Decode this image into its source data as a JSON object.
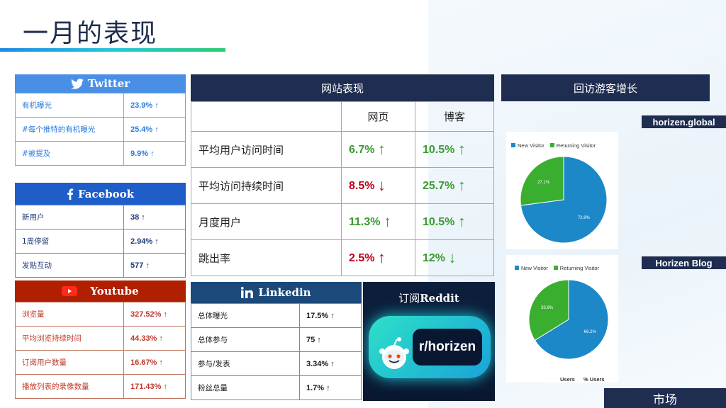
{
  "page": {
    "title": "一月的表现",
    "footer": "市场"
  },
  "twitter": {
    "title": "Twitter",
    "rows": [
      {
        "label": "有机曝光",
        "value": "23.9% ↑"
      },
      {
        "label": "#每个推特的有机曝光",
        "value": "25.4% ↑"
      },
      {
        "label": "#被提及",
        "value": "9.9% ↑"
      }
    ]
  },
  "facebook": {
    "title": "Facebook",
    "rows": [
      {
        "label": "新用户",
        "value": "38 ↑"
      },
      {
        "label": "1周停留",
        "value": "2.94% ↑"
      },
      {
        "label": "发贴互动",
        "value": "577 ↑"
      }
    ]
  },
  "youtube": {
    "title": "Youtube",
    "rows": [
      {
        "label": "浏览量",
        "value": "327.52% ↑"
      },
      {
        "label": "平均浏览持续时间",
        "value": "44.33% ↑"
      },
      {
        "label": "订阅用户数量",
        "value": "16.67% ↑"
      },
      {
        "label": "播放列表的录像数量",
        "value": "171.43% ↑"
      }
    ]
  },
  "linkedin": {
    "title": "Linkedin",
    "rows": [
      {
        "label": "总体曝光",
        "value": "17.5% ↑"
      },
      {
        "label": "总体参与",
        "value": "75 ↑"
      },
      {
        "label": "参与/发表",
        "value": "3.34% ↑"
      },
      {
        "label": "粉丝总量",
        "value": "1.7% ↑"
      }
    ]
  },
  "website": {
    "title": "网站表现",
    "columns": [
      "网页",
      "博客"
    ],
    "rows": [
      {
        "label": "平均用户访问时间",
        "web": "6.7%",
        "web_arrow": "↑",
        "web_dir": "up",
        "blog": "10.5%",
        "blog_arrow": "↑",
        "blog_dir": "up"
      },
      {
        "label": "平均访问持续时间",
        "web": "8.5%",
        "web_arrow": "↓",
        "web_dir": "down-bad",
        "blog": "25.7%",
        "blog_arrow": "↑",
        "blog_dir": "up"
      },
      {
        "label": "月度用户",
        "web": "11.3%",
        "web_arrow": "↑",
        "web_dir": "up",
        "blog": "10.5%",
        "blog_arrow": "↑",
        "blog_dir": "up"
      },
      {
        "label": "跳出率",
        "web": "2.5%",
        "web_arrow": "↑",
        "web_dir": "up-bad",
        "blog": "12%",
        "blog_arrow": "↓",
        "blog_dir": "down-good"
      }
    ]
  },
  "reddit": {
    "title_prefix": "订阅",
    "title_brand": "Reddit",
    "handle": "r/horizen"
  },
  "visitors": {
    "title": "回访游客增长",
    "colors": {
      "new": "#1c88c7",
      "returning": "#3aae2f"
    },
    "legend": {
      "new": "New Visitor",
      "returning": "Returning Visitor"
    },
    "sites": [
      {
        "name": "horizen.global",
        "new_pct": 72.9,
        "returning_pct": 27.1,
        "new_label": "72.9%",
        "returning_label": "27.1%"
      },
      {
        "name": "Horizen Blog",
        "new_pct": 66.2,
        "returning_pct": 33.8,
        "new_label": "66.2%",
        "returning_label": "33.8%"
      }
    ],
    "footer_cols": [
      "Users",
      "% Users"
    ]
  }
}
